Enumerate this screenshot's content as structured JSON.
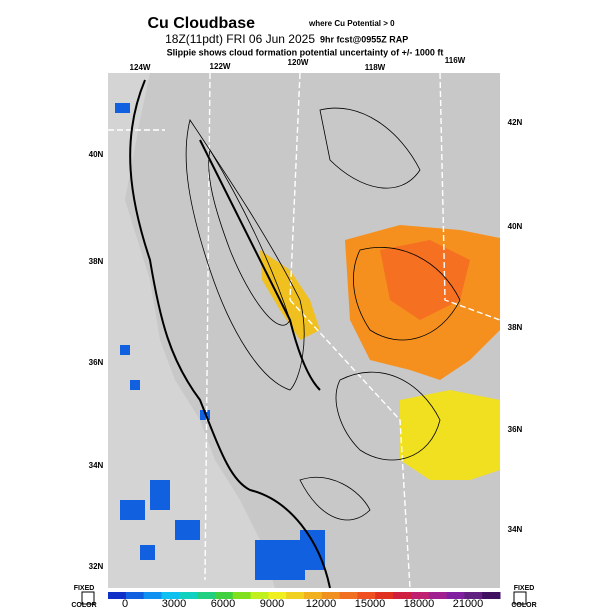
{
  "header": {
    "title": "Cu Cloudbase",
    "title_note": "where Cu Potential > 0",
    "valid": "18Z(11pdt) FRI 06 Jun 2025",
    "forecast": "9hr fcst@0955Z RAP",
    "note": "Slippie shows cloud formation potential uncertainty of +/- 1000 ft"
  },
  "map": {
    "lon_labels": [
      "124W",
      "122W",
      "120W",
      "118W",
      "116W"
    ],
    "lat_labels_left": [
      "40N",
      "38N",
      "36N",
      "34N",
      "32N"
    ],
    "lat_labels_right": [
      "42N",
      "40N",
      "38N",
      "36N",
      "34N"
    ]
  },
  "colorbar": {
    "ticks": [
      0,
      3000,
      6000,
      9000,
      12000,
      15000,
      18000,
      21000
    ],
    "colors": [
      "#1030c8",
      "#1060e0",
      "#1090f0",
      "#10c0f0",
      "#10d0c0",
      "#20d080",
      "#40d040",
      "#80e020",
      "#c0f020",
      "#f0f020",
      "#f0d020",
      "#f0b020",
      "#f09020",
      "#f07020",
      "#f05020",
      "#e03020",
      "#d02040",
      "#c02070",
      "#a02090",
      "#8020a0",
      "#602080",
      "#401060"
    ],
    "left_top": "FIXED",
    "left_bottom": "COLOR",
    "right_top": "FIXED",
    "right_bottom": "COLOR"
  }
}
